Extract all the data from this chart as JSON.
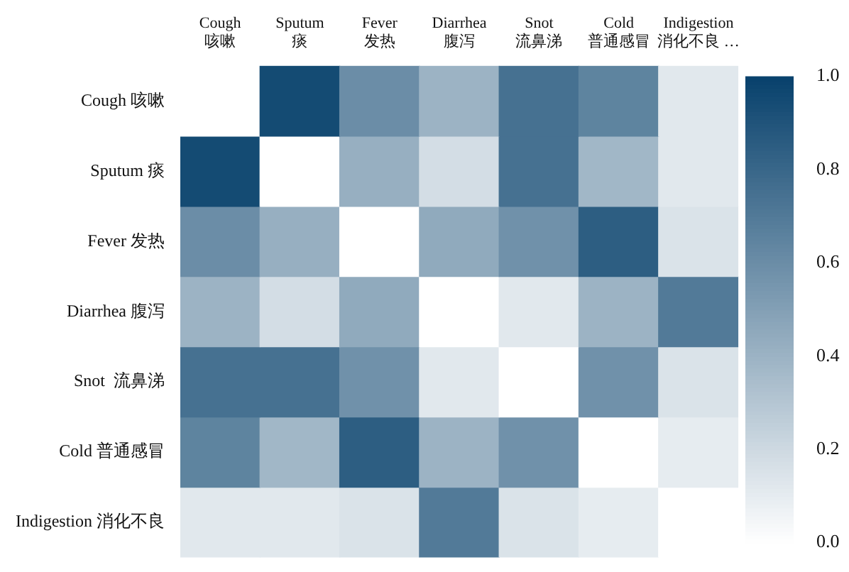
{
  "chart_data": {
    "type": "heatmap",
    "categories": [
      "Cough 咳嗽",
      "Sputum 痰",
      "Fever 发热",
      "Diarrhea 腹泻",
      "Snot 流鼻涕",
      "Cold 普通感冒",
      "Indigestion 消化不良 …"
    ],
    "y_categories": [
      "Cough 咳嗽",
      "Sputum 痰",
      "Fever 发热",
      "Diarrhea 腹泻",
      "Snot  流鼻涕",
      "Cold 普通感冒",
      "Indigestion 消化不良"
    ],
    "cells": [
      [
        0,
        0.95,
        0.6,
        0.4,
        0.75,
        0.65,
        0.12
      ],
      [
        0.95,
        0,
        0.42,
        0.18,
        0.75,
        0.38,
        0.12
      ],
      [
        0.6,
        0.42,
        0,
        0.45,
        0.58,
        0.85,
        0.15
      ],
      [
        0.4,
        0.18,
        0.45,
        0,
        0.12,
        0.4,
        0.7
      ],
      [
        0.75,
        0.75,
        0.58,
        0.12,
        0,
        0.58,
        0.15
      ],
      [
        0.65,
        0.38,
        0.85,
        0.4,
        0.58,
        0,
        0.1
      ],
      [
        0.12,
        0.12,
        0.15,
        0.7,
        0.15,
        0.1,
        0
      ]
    ],
    "clim": [
      0,
      1
    ],
    "cticks": [
      {
        "value": 0,
        "label": "0.0"
      },
      {
        "value": 0.2,
        "label": "0.2"
      },
      {
        "value": 0.4,
        "label": "0.4"
      },
      {
        "value": 0.6,
        "label": "0.6"
      },
      {
        "value": 0.8,
        "label": "0.8"
      },
      {
        "value": 1,
        "label": "1.0"
      }
    ]
  }
}
